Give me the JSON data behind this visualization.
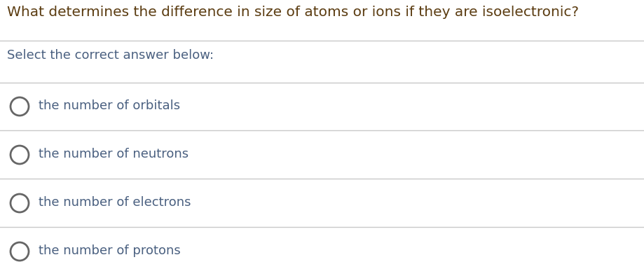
{
  "title": "What determines the difference in size of atoms or ions if they are isoelectronic?",
  "subtitle": "Select the correct answer below:",
  "options": [
    "the number of orbitals",
    "the number of neutrons",
    "the number of electrons",
    "the number of protons"
  ],
  "title_color": "#5b3c11",
  "subtitle_color": "#4a6080",
  "option_color": "#4a6080",
  "background_color": "#ffffff",
  "line_color": "#c8c8c8",
  "circle_edge_color": "#666666",
  "title_fontsize": 14.5,
  "subtitle_fontsize": 13,
  "option_fontsize": 13,
  "fig_width": 9.19,
  "fig_height": 3.94,
  "dpi": 100
}
